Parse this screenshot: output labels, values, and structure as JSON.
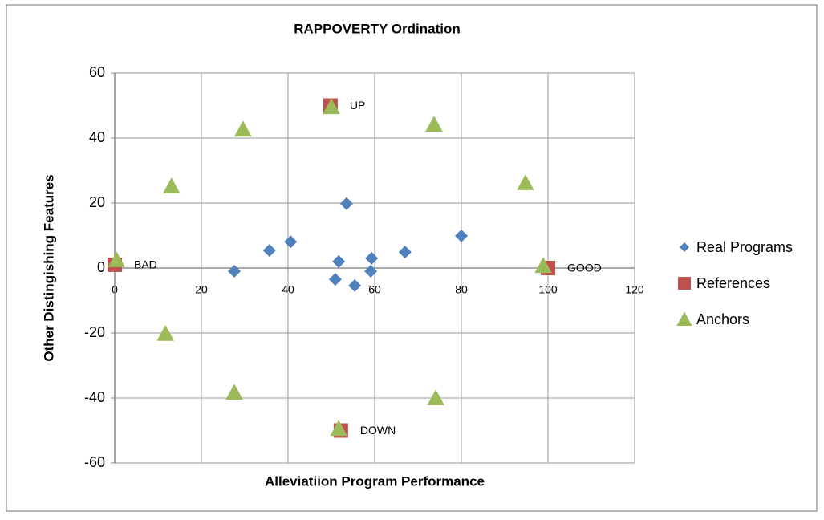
{
  "chart_data": {
    "type": "scatter",
    "title": "RAPPOVERTY Ordination",
    "x_label": "Alleviatiion Program Performance",
    "y_label": "Other Distingishing Features",
    "xlim": [
      0,
      120
    ],
    "xticks": [
      0,
      20,
      40,
      60,
      80,
      100,
      120
    ],
    "ylim": [
      -60,
      60
    ],
    "yticks": [
      -60,
      -40,
      -20,
      0,
      20,
      40,
      60
    ],
    "grid": true,
    "legend": "right",
    "series": [
      {
        "name": "Real Programs",
        "color": "#4f81bd",
        "marker": "diamond",
        "x": [
          27.6,
          35.7,
          40.6,
          51.7,
          50.9,
          53.5,
          55.4,
          59.3,
          59.1,
          67,
          80
        ],
        "values": [
          -1,
          5.4,
          8.1,
          2,
          -3.5,
          19.8,
          -5.4,
          3,
          -1,
          4.9,
          9.9
        ]
      },
      {
        "name": "References",
        "color": "#c0504d",
        "marker": "square",
        "x": [
          0,
          49.8,
          100,
          52.2
        ],
        "values": [
          1,
          50,
          0,
          -50
        ],
        "point_labels": [
          "BAD",
          "UP",
          "GOOD",
          "DOWN"
        ]
      },
      {
        "name": "Anchors",
        "color": "#9bbb59",
        "marker": "triangle",
        "x": [
          0.4,
          13.1,
          29.6,
          50,
          73.7,
          94.8,
          98.9,
          11.7,
          27.6,
          51.7,
          74.1
        ],
        "values": [
          2.5,
          25.2,
          42.7,
          49.6,
          44.2,
          26.2,
          0.7,
          -20.2,
          -38.3,
          -49.4,
          -40
        ]
      }
    ]
  }
}
